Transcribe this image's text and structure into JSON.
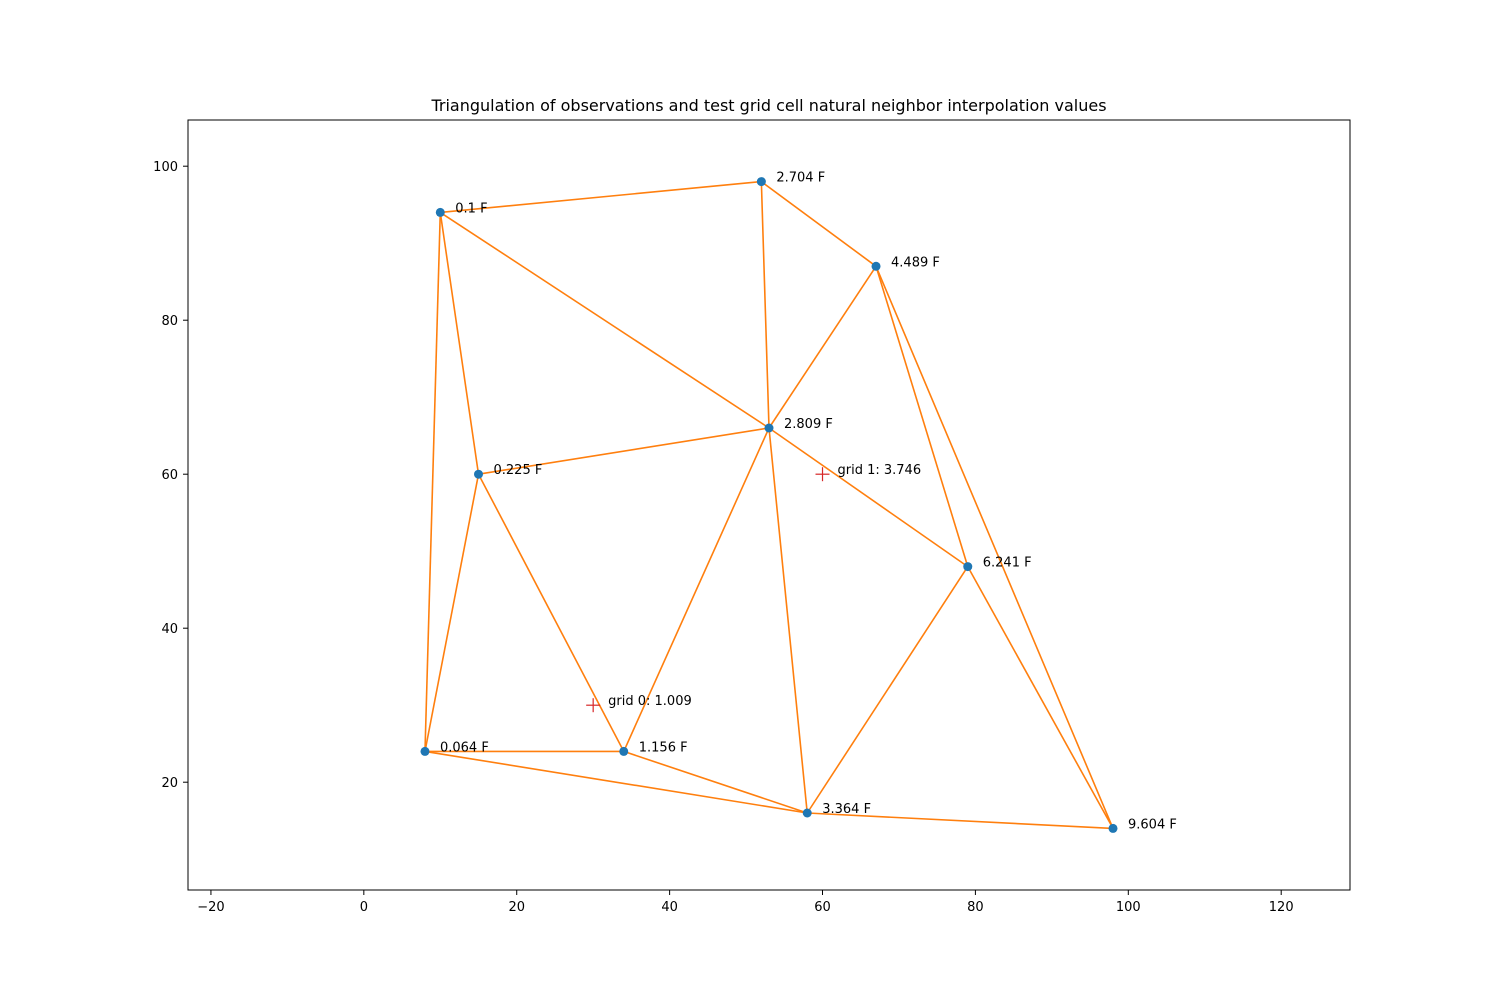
{
  "chart_data": {
    "type": "scatter",
    "title": "Triangulation of observations and test grid cell natural neighbor interpolation values",
    "xlabel": "",
    "ylabel": "",
    "xlim": [
      -23,
      129
    ],
    "ylim": [
      6,
      106
    ],
    "xticks": [
      -20,
      0,
      20,
      40,
      60,
      80,
      100,
      120
    ],
    "yticks": [
      20,
      40,
      60,
      80,
      100
    ],
    "grid": false,
    "colors": {
      "points": "#1f77b4",
      "edges": "#ff7f0e",
      "grid_markers": "#d62728"
    },
    "points": [
      {
        "x": 10,
        "y": 94,
        "label": "0.1 F"
      },
      {
        "x": 52,
        "y": 98,
        "label": "2.704 F"
      },
      {
        "x": 67,
        "y": 87,
        "label": "4.489 F"
      },
      {
        "x": 53,
        "y": 66,
        "label": "2.809 F"
      },
      {
        "x": 15,
        "y": 60,
        "label": "0.225 F"
      },
      {
        "x": 79,
        "y": 48,
        "label": "6.241 F"
      },
      {
        "x": 8,
        "y": 24,
        "label": "0.064 F"
      },
      {
        "x": 34,
        "y": 24,
        "label": "1.156 F"
      },
      {
        "x": 58,
        "y": 16,
        "label": "3.364 F"
      },
      {
        "x": 98,
        "y": 14,
        "label": "9.604 F"
      }
    ],
    "edges": [
      [
        0,
        1
      ],
      [
        1,
        2
      ],
      [
        1,
        3
      ],
      [
        0,
        3
      ],
      [
        0,
        4
      ],
      [
        0,
        6
      ],
      [
        2,
        3
      ],
      [
        2,
        5
      ],
      [
        2,
        9
      ],
      [
        3,
        4
      ],
      [
        3,
        5
      ],
      [
        3,
        7
      ],
      [
        3,
        8
      ],
      [
        4,
        6
      ],
      [
        4,
        7
      ],
      [
        6,
        7
      ],
      [
        6,
        8
      ],
      [
        7,
        8
      ],
      [
        8,
        5
      ],
      [
        5,
        9
      ],
      [
        8,
        9
      ]
    ],
    "grid_points": [
      {
        "x": 30,
        "y": 30,
        "label": "grid 0: 1.009"
      },
      {
        "x": 60,
        "y": 60,
        "label": "grid 1: 3.746"
      }
    ]
  }
}
